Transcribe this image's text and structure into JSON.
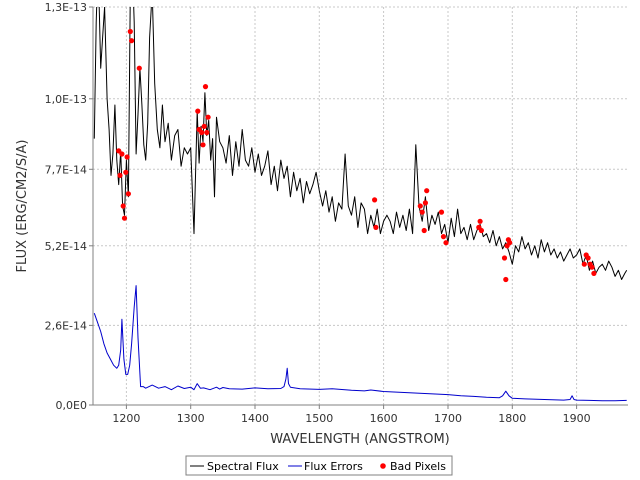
{
  "chart_data": {
    "type": "line",
    "xlabel": "WAVELENGTH (ANGSTROM)",
    "ylabel": "FLUX (ERG/CM2/S/A)",
    "xlim": [
      1148,
      1980
    ],
    "ylim": [
      0,
      1.3e-13
    ],
    "x_ticks": [
      1200,
      1300,
      1400,
      1500,
      1600,
      1700,
      1800,
      1900
    ],
    "y_ticks": [
      0,
      2.6e-14,
      5.2e-14,
      7.7e-14,
      1e-13,
      1.3e-13
    ],
    "x_tick_labels": [
      "1200",
      "1300",
      "1400",
      "1500",
      "1600",
      "1700",
      "1800",
      "1900"
    ],
    "y_tick_labels": [
      "0,0E0",
      "2,6E-14",
      "5,2E-14",
      "7,7E-14",
      "1,0E-13",
      "1,3E-13"
    ],
    "grid": true,
    "legend_position": "bottom-center",
    "series": [
      {
        "name": "Spectral Flux",
        "color": "#000000",
        "marker": "line",
        "x": [
          1150,
          1153,
          1156,
          1160,
          1163,
          1166,
          1170,
          1173,
          1176,
          1179,
          1182,
          1185,
          1188,
          1191,
          1194,
          1197,
          1200,
          1203,
          1206,
          1209,
          1212,
          1215,
          1218,
          1221,
          1224,
          1227,
          1230,
          1233,
          1236,
          1240,
          1244,
          1248,
          1252,
          1256,
          1260,
          1265,
          1270,
          1275,
          1280,
          1285,
          1290,
          1295,
          1300,
          1305,
          1310,
          1313,
          1316,
          1319,
          1322,
          1325,
          1328,
          1331,
          1334,
          1337,
          1340,
          1345,
          1350,
          1355,
          1360,
          1365,
          1370,
          1375,
          1380,
          1385,
          1390,
          1395,
          1400,
          1405,
          1410,
          1415,
          1420,
          1425,
          1430,
          1435,
          1440,
          1445,
          1450,
          1455,
          1460,
          1465,
          1470,
          1475,
          1480,
          1485,
          1490,
          1495,
          1500,
          1505,
          1510,
          1515,
          1520,
          1525,
          1530,
          1535,
          1540,
          1545,
          1550,
          1555,
          1560,
          1565,
          1570,
          1575,
          1580,
          1585,
          1590,
          1595,
          1600,
          1605,
          1610,
          1615,
          1620,
          1625,
          1630,
          1635,
          1640,
          1645,
          1650,
          1655,
          1660,
          1665,
          1670,
          1675,
          1680,
          1685,
          1690,
          1695,
          1700,
          1705,
          1710,
          1715,
          1720,
          1725,
          1730,
          1735,
          1740,
          1745,
          1750,
          1755,
          1760,
          1765,
          1770,
          1775,
          1780,
          1785,
          1790,
          1795,
          1800,
          1805,
          1810,
          1815,
          1820,
          1825,
          1830,
          1835,
          1840,
          1845,
          1850,
          1855,
          1860,
          1865,
          1870,
          1875,
          1880,
          1885,
          1890,
          1895,
          1900,
          1905,
          1910,
          1915,
          1920,
          1925,
          1930,
          1935,
          1940,
          1945,
          1950,
          1955,
          1960,
          1965,
          1970,
          1975,
          1978
        ],
        "values": [
          8.7e-14,
          1.25e-13,
          1.45e-13,
          1.1e-13,
          1.2e-13,
          1.3e-13,
          1e-13,
          9e-14,
          7.5e-14,
          8.2e-14,
          9.8e-14,
          8e-14,
          7.2e-14,
          8.3e-14,
          6.5e-14,
          6.2e-14,
          8e-14,
          6.8e-14,
          1.35e-13,
          1.45e-13,
          1.25e-13,
          8.2e-14,
          9.5e-14,
          1.1e-13,
          9.8e-14,
          8.5e-14,
          8e-14,
          9.2e-14,
          1.2e-13,
          1.35e-13,
          1.05e-13,
          9e-14,
          8.4e-14,
          9.8e-14,
          8.6e-14,
          9.2e-14,
          8e-14,
          8.8e-14,
          9e-14,
          7.8e-14,
          8.4e-14,
          8.2e-14,
          8.4e-14,
          5.6e-14,
          9.6e-14,
          7.9e-14,
          9.1e-14,
          8.6e-14,
          1.02e-13,
          8.8e-14,
          9.3e-14,
          8e-14,
          8.7e-14,
          6.8e-14,
          9.4e-14,
          8.6e-14,
          8.4e-14,
          7.9e-14,
          8.8e-14,
          7.5e-14,
          8.6e-14,
          7.8e-14,
          9e-14,
          8e-14,
          7.8e-14,
          8.4e-14,
          7.6e-14,
          8.2e-14,
          7.5e-14,
          7.8e-14,
          8.3e-14,
          7.2e-14,
          7.8e-14,
          7e-14,
          8e-14,
          7.4e-14,
          7.8e-14,
          6.8e-14,
          7.6e-14,
          7e-14,
          7.4e-14,
          6.6e-14,
          7.3e-14,
          6.9e-14,
          7.2e-14,
          7.6e-14,
          7e-14,
          6.5e-14,
          7e-14,
          6.3e-14,
          6.8e-14,
          6e-14,
          6.6e-14,
          6.4e-14,
          8.2e-14,
          6.5e-14,
          6.2e-14,
          6.8e-14,
          5.8e-14,
          6.6e-14,
          6.4e-14,
          5.6e-14,
          6.2e-14,
          5.8e-14,
          6.4e-14,
          5.6e-14,
          6e-14,
          6.2e-14,
          6e-14,
          5.6e-14,
          6.3e-14,
          5.8e-14,
          6.2e-14,
          5.7e-14,
          6.4e-14,
          5.6e-14,
          8.5e-14,
          6.5e-14,
          6e-14,
          6.8e-14,
          5.7e-14,
          6.2e-14,
          5.9e-14,
          6.3e-14,
          5.6e-14,
          5.9e-14,
          5.3e-14,
          6.1e-14,
          5.5e-14,
          6.4e-14,
          5.6e-14,
          5.8e-14,
          5.4e-14,
          5.9e-14,
          5.4e-14,
          5.7e-14,
          5.9e-14,
          5.5e-14,
          5.6e-14,
          5.3e-14,
          5.7e-14,
          5.2e-14,
          5.5e-14,
          5.1e-14,
          5.3e-14,
          5e-14,
          4.6e-14,
          5.2e-14,
          5e-14,
          5.5e-14,
          5.1e-14,
          5.3e-14,
          4.9e-14,
          5.2e-14,
          4.8e-14,
          5.4e-14,
          5e-14,
          5.3e-14,
          4.9e-14,
          5.1e-14,
          4.8e-14,
          5e-14,
          4.7e-14,
          4.9e-14,
          5.1e-14,
          4.8e-14,
          4.9e-14,
          5.1e-14,
          4.6e-14,
          4.9e-14,
          4.4e-14,
          4.7e-14,
          4.3e-14,
          4.5e-14,
          4.6e-14,
          4.4e-14,
          4.7e-14,
          4.5e-14,
          4.2e-14,
          4.4e-14,
          4.1e-14,
          4.3e-14,
          4.4e-14
        ]
      },
      {
        "name": "Flux Errors",
        "color": "#0000cc",
        "marker": "line",
        "x": [
          1150,
          1155,
          1160,
          1165,
          1170,
          1175,
          1180,
          1185,
          1188,
          1191,
          1193,
          1196,
          1199,
          1202,
          1205,
          1208,
          1212,
          1215,
          1218,
          1222,
          1226,
          1230,
          1240,
          1250,
          1260,
          1270,
          1280,
          1290,
          1300,
          1305,
          1310,
          1315,
          1320,
          1330,
          1340,
          1345,
          1350,
          1360,
          1380,
          1400,
          1420,
          1440,
          1445,
          1448,
          1450,
          1452,
          1455,
          1470,
          1500,
          1520,
          1550,
          1570,
          1580,
          1600,
          1620,
          1640,
          1660,
          1680,
          1700,
          1720,
          1740,
          1760,
          1780,
          1785,
          1790,
          1795,
          1800,
          1820,
          1850,
          1880,
          1890,
          1893,
          1896,
          1900,
          1920,
          1940,
          1960,
          1978
        ],
        "values": [
          3e-14,
          2.7e-14,
          2.4e-14,
          2e-14,
          1.7e-14,
          1.5e-14,
          1.3e-14,
          1.2e-14,
          1.3e-14,
          1.8e-14,
          2.8e-14,
          1.5e-14,
          1e-14,
          1e-14,
          1.3e-14,
          2e-14,
          3.2e-14,
          3.9e-14,
          2.2e-14,
          6e-15,
          6e-15,
          5.5e-15,
          6.5e-15,
          5.5e-15,
          6e-15,
          5e-15,
          6.2e-15,
          5.4e-15,
          5.8e-15,
          5e-15,
          7e-15,
          5.5e-15,
          5.6e-15,
          5e-15,
          5.8e-15,
          5.2e-15,
          5.7e-15,
          5.3e-15,
          5.2e-15,
          5.6e-15,
          5.3e-15,
          5.4e-15,
          6e-15,
          8.5e-15,
          1.2e-14,
          7e-15,
          5.8e-15,
          5.3e-15,
          5.1e-15,
          5.3e-15,
          4.8e-15,
          4.6e-15,
          4.9e-15,
          4.4e-15,
          4.2e-15,
          4e-15,
          3.8e-15,
          3.6e-15,
          3.4e-15,
          3e-15,
          2.8e-15,
          2.5e-15,
          2.4e-15,
          3e-15,
          4.5e-15,
          3e-15,
          2.2e-15,
          2e-15,
          1.8e-15,
          1.6e-15,
          1.8e-15,
          3e-15,
          1.8e-15,
          1.6e-15,
          1.5e-15,
          1.4e-15,
          1.4e-15,
          1.5e-15
        ]
      },
      {
        "name": "Bad Pixels",
        "color": "#ff0000",
        "marker": "circle",
        "x": [
          1188,
          1190,
          1193,
          1195,
          1197,
          1199,
          1201,
          1203,
          1206,
          1208,
          1220,
          1311,
          1313,
          1317,
          1319,
          1321,
          1323,
          1325,
          1327,
          1586,
          1588,
          1657,
          1660,
          1663,
          1665,
          1667,
          1690,
          1693,
          1697,
          1748,
          1750,
          1752,
          1788,
          1790,
          1792,
          1794,
          1796,
          1912,
          1915,
          1918,
          1921,
          1924,
          1927
        ],
        "values": [
          8.3e-14,
          7.5e-14,
          8.2e-14,
          6.5e-14,
          6.1e-14,
          7.6e-14,
          8.1e-14,
          6.9e-14,
          1.22e-13,
          1.19e-13,
          1.1e-13,
          9.6e-14,
          9e-14,
          8.9e-14,
          8.5e-14,
          9.1e-14,
          1.04e-13,
          8.9e-14,
          9.4e-14,
          6.7e-14,
          5.8e-14,
          6.5e-14,
          6.3e-14,
          5.7e-14,
          6.6e-14,
          7e-14,
          6.3e-14,
          5.5e-14,
          5.3e-14,
          5.8e-14,
          6e-14,
          5.7e-14,
          4.8e-14,
          4.1e-14,
          5.2e-14,
          5.4e-14,
          5.3e-14,
          4.6e-14,
          4.9e-14,
          4.8e-14,
          4.6e-14,
          4.5e-14,
          4.3e-14
        ]
      }
    ]
  }
}
